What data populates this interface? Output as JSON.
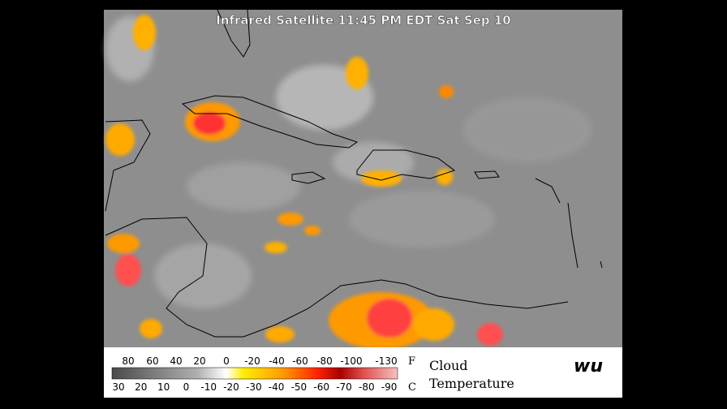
{
  "header": {
    "title": "Infrared Satellite 11:45 PM EDT Sat Sep 10"
  },
  "legend": {
    "fahrenheit": {
      "labels": [
        "80",
        "60",
        "40",
        "20",
        "0",
        "-20",
        "-40",
        "-60",
        "-80",
        "-100",
        "-130"
      ],
      "unit": "F"
    },
    "celsius": {
      "labels": [
        "30",
        "20",
        "10",
        "0",
        "-10",
        "-20",
        "-30",
        "-40",
        "-50",
        "-60",
        "-70",
        "-80",
        "-90"
      ],
      "unit": "C"
    },
    "caption": [
      "Cloud",
      "Temperature"
    ],
    "logo": "wu"
  }
}
